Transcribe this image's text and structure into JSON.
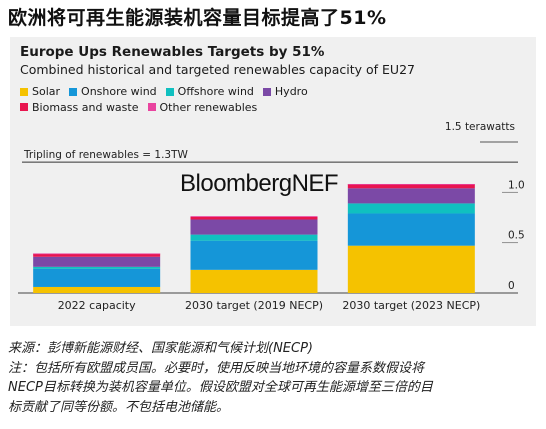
{
  "headline": "欧洲将可再生能源装机容量目标提高了51%",
  "chart_data": {
    "type": "bar",
    "stacked": true,
    "title": "Europe Ups Renewables Targets by 51%",
    "subtitle": "Combined historical and targeted renewables capacity of EU27",
    "unit_label": "1.5 terawatts",
    "categories": [
      "2022 capacity",
      "2030 target (2019 NECP)",
      "2030 target (2023 NECP)"
    ],
    "series": [
      {
        "name": "Solar",
        "color": "#f5c200",
        "values": [
          0.06,
          0.23,
          0.47
        ]
      },
      {
        "name": "Onshore wind",
        "color": "#1596d8",
        "values": [
          0.18,
          0.29,
          0.32
        ]
      },
      {
        "name": "Offshore wind",
        "color": "#10c0c0",
        "values": [
          0.02,
          0.06,
          0.1
        ]
      },
      {
        "name": "Hydro",
        "color": "#7b49a6",
        "values": [
          0.1,
          0.15,
          0.15
        ]
      },
      {
        "name": "Biomass and waste",
        "color": "#e8154f",
        "values": [
          0.03,
          0.03,
          0.04
        ]
      },
      {
        "name": "Other renewables",
        "color": "#e9449f",
        "values": [
          0.003,
          0.003,
          0.003
        ]
      }
    ],
    "ylim": [
      0,
      1.5
    ],
    "yticks": [
      "0",
      "0.5",
      "1.0"
    ],
    "reference_line": {
      "value": 1.3,
      "label": "Tripling of renewables = 1.3TW"
    },
    "watermark": "BloombergNEF",
    "legend_position": "top-left"
  },
  "footer": {
    "source": "来源：彭博新能源财经、国家能源和气候计划(NECP)",
    "note_lines": [
      "注：包括所有欧盟成员国。必要时，使用反映当地环境的容量系数假设将",
      "NECP目标转换为装机容量单位。假设欧盟对全球可再生能源增至三倍的目",
      "标贡献了同等份额。不包括电池储能。"
    ]
  }
}
